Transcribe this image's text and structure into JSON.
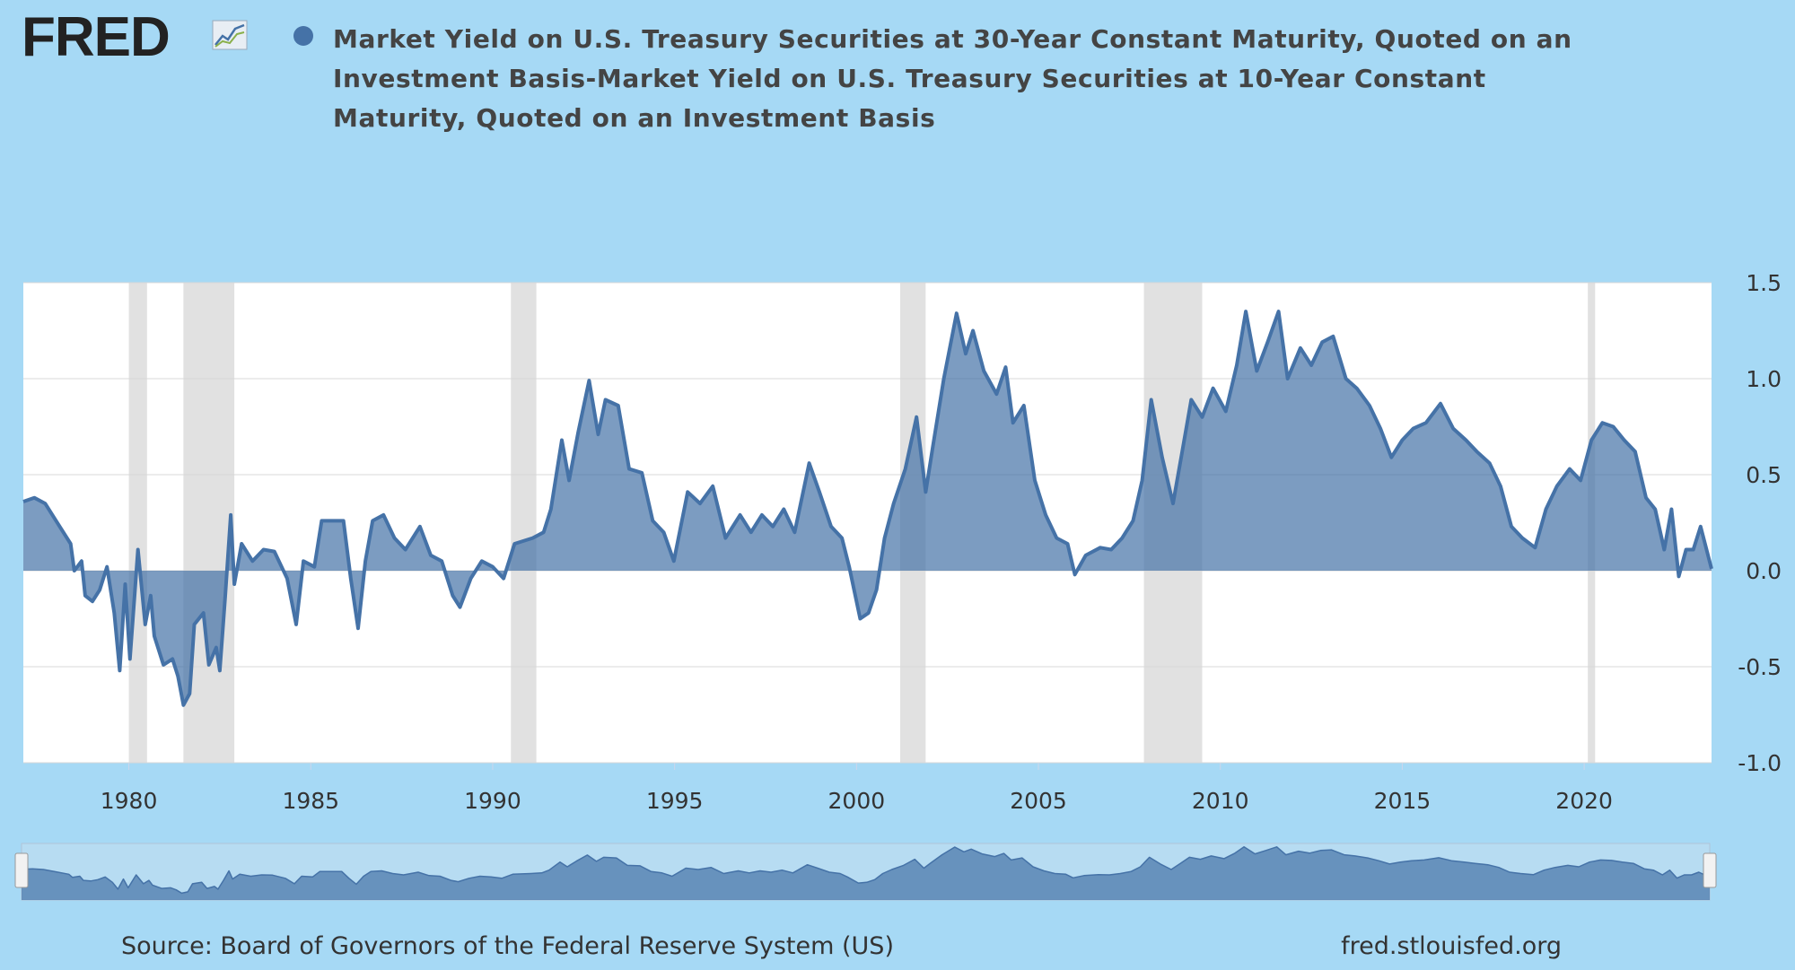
{
  "logo": "FRED",
  "chart_data": {
    "type": "area",
    "x": [
      1977.1,
      1977.4,
      1977.7,
      1978.0,
      1978.4,
      1978.5,
      1978.7,
      1978.8,
      1979.0,
      1979.2,
      1979.4,
      1979.6,
      1979.75,
      1979.9,
      1980.03,
      1980.25,
      1980.45,
      1980.6,
      1980.7,
      1980.95,
      1981.2,
      1981.35,
      1981.5,
      1981.67,
      1981.8,
      1982.05,
      1982.2,
      1982.4,
      1982.5,
      1982.65,
      1982.8,
      1982.9,
      1983.1,
      1983.4,
      1983.7,
      1984.0,
      1984.35,
      1984.6,
      1984.8,
      1985.1,
      1985.3,
      1985.6,
      1985.9,
      1986.1,
      1986.3,
      1986.5,
      1986.7,
      1987.0,
      1987.3,
      1987.6,
      1988.0,
      1988.3,
      1988.6,
      1988.9,
      1989.1,
      1989.4,
      1989.7,
      1990.0,
      1990.3,
      1990.6,
      1991.1,
      1991.4,
      1991.6,
      1991.9,
      1992.1,
      1992.35,
      1992.65,
      1992.9,
      1993.1,
      1993.45,
      1993.75,
      1994.1,
      1994.4,
      1994.7,
      1994.98,
      1995.36,
      1995.7,
      1996.05,
      1996.4,
      1996.8,
      1997.1,
      1997.4,
      1997.7,
      1998.0,
      1998.3,
      1998.7,
      1998.98,
      1999.3,
      1999.6,
      1999.8,
      2000.1,
      2000.33,
      2000.55,
      2000.77,
      2001.02,
      2001.34,
      2001.65,
      2001.9,
      2002.1,
      2002.4,
      2002.75,
      2003.0,
      2003.2,
      2003.5,
      2003.85,
      2004.1,
      2004.3,
      2004.6,
      2004.9,
      2005.2,
      2005.5,
      2005.8,
      2006.0,
      2006.3,
      2006.7,
      2007.0,
      2007.3,
      2007.6,
      2007.85,
      2008.1,
      2008.4,
      2008.7,
      2008.95,
      2009.2,
      2009.5,
      2009.8,
      2010.15,
      2010.45,
      2010.7,
      2011.0,
      2011.3,
      2011.6,
      2011.85,
      2012.2,
      2012.5,
      2012.8,
      2013.1,
      2013.45,
      2013.75,
      2014.1,
      2014.4,
      2014.7,
      2015.0,
      2015.3,
      2015.65,
      2016.05,
      2016.4,
      2016.75,
      2017.05,
      2017.4,
      2017.7,
      2018.0,
      2018.3,
      2018.65,
      2018.95,
      2019.25,
      2019.6,
      2019.9,
      2020.2,
      2020.5,
      2020.8,
      2021.1,
      2021.4,
      2021.7,
      2021.95,
      2022.2,
      2022.4,
      2022.6,
      2022.8,
      2023.0,
      2023.2,
      2023.5
    ],
    "series": [
      {
        "name": "Market Yield on U.S. Treasury Securities at 30-Year Constant Maturity, Quoted on an Investment Basis-Market Yield on U.S. Treasury Securities at 10-Year Constant Maturity, Quoted on an Investment Basis",
        "color": "#4572a7",
        "values": [
          0.36,
          0.38,
          0.35,
          0.26,
          0.14,
          0.0,
          0.05,
          -0.13,
          -0.16,
          -0.1,
          0.02,
          -0.22,
          -0.52,
          -0.07,
          -0.46,
          0.11,
          -0.28,
          -0.13,
          -0.34,
          -0.49,
          -0.46,
          -0.55,
          -0.7,
          -0.64,
          -0.28,
          -0.22,
          -0.49,
          -0.4,
          -0.52,
          -0.13,
          0.29,
          -0.07,
          0.14,
          0.05,
          0.11,
          0.1,
          -0.04,
          -0.28,
          0.05,
          0.02,
          0.26,
          0.26,
          0.26,
          -0.04,
          -0.3,
          0.05,
          0.26,
          0.29,
          0.17,
          0.11,
          0.23,
          0.08,
          0.05,
          -0.13,
          -0.19,
          -0.04,
          0.05,
          0.02,
          -0.04,
          0.14,
          0.17,
          0.2,
          0.32,
          0.68,
          0.47,
          0.72,
          0.99,
          0.71,
          0.89,
          0.86,
          0.53,
          0.51,
          0.26,
          0.2,
          0.05,
          0.41,
          0.35,
          0.44,
          0.17,
          0.29,
          0.2,
          0.29,
          0.23,
          0.32,
          0.2,
          0.56,
          0.41,
          0.23,
          0.17,
          0.02,
          -0.25,
          -0.22,
          -0.1,
          0.17,
          0.35,
          0.53,
          0.8,
          0.41,
          0.65,
          1.0,
          1.34,
          1.13,
          1.25,
          1.04,
          0.92,
          1.06,
          0.77,
          0.86,
          0.47,
          0.29,
          0.17,
          0.14,
          -0.02,
          0.08,
          0.12,
          0.11,
          0.17,
          0.26,
          0.47,
          0.89,
          0.59,
          0.35,
          0.62,
          0.89,
          0.8,
          0.95,
          0.83,
          1.07,
          1.35,
          1.04,
          1.19,
          1.35,
          1.0,
          1.16,
          1.07,
          1.19,
          1.22,
          1.0,
          0.95,
          0.86,
          0.74,
          0.59,
          0.68,
          0.74,
          0.77,
          0.87,
          0.74,
          0.68,
          0.62,
          0.56,
          0.44,
          0.23,
          0.17,
          0.12,
          0.32,
          0.44,
          0.53,
          0.47,
          0.68,
          0.77,
          0.75,
          0.68,
          0.62,
          0.38,
          0.32,
          0.11,
          0.32,
          -0.03,
          0.11,
          0.11,
          0.23,
          0.01
        ]
      }
    ],
    "xlim": [
      1977.1,
      2023.5
    ],
    "ylim": [
      -1,
      1.5
    ],
    "xticks": [
      1980,
      1985,
      1990,
      1995,
      2000,
      2005,
      2010,
      2015,
      2020
    ],
    "yticks": [
      {
        "value": -1,
        "label": "-1.0"
      },
      -0.5,
      {
        "value": 0,
        "label": "0.0"
      },
      0.5,
      {
        "value": 1,
        "label": "1.0"
      },
      1.5
    ],
    "recessions": [
      [
        1980.0,
        1980.5
      ],
      [
        1981.5,
        1982.9
      ],
      [
        1990.5,
        1991.2
      ],
      [
        2001.2,
        2001.9
      ],
      [
        2007.9,
        2009.5
      ],
      [
        2020.1,
        2020.3
      ]
    ],
    "grid": true,
    "source": "Source: Board of Governors of the Federal Reserve System (US)",
    "url": "fred.stlouisfed.org"
  }
}
